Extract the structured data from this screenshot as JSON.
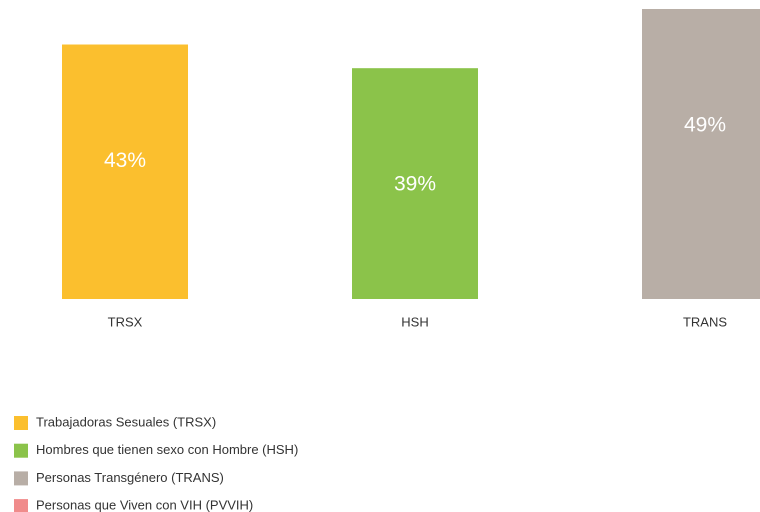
{
  "chart_data": {
    "type": "bar",
    "categories": [
      "TRSX",
      "HSH",
      "TRANS"
    ],
    "values": [
      43,
      39,
      49
    ],
    "value_labels": [
      "43%",
      "39%",
      "49%"
    ],
    "legend": [
      {
        "name": "Trabajadoras Sesuales (TRSX)",
        "color": "#fbbf2e"
      },
      {
        "name": "Hombres que tienen sexo con Hombre (HSH)",
        "color": "#8bc34a"
      },
      {
        "name": "Personas Transgénero (TRANS)",
        "color": "#b8aea6"
      },
      {
        "name": "Personas que Viven con VIH (PVVIH)",
        "color": "#f08b8b"
      }
    ]
  }
}
